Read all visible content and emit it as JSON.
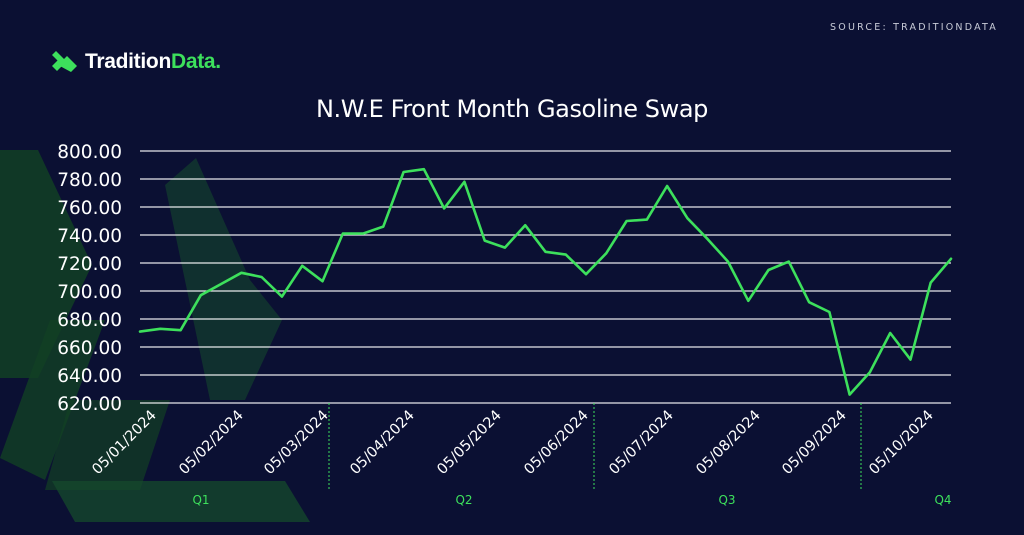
{
  "source": "SOURCE: TRADITIONDATA",
  "logo": {
    "name": "Tradition",
    "accent": "Data."
  },
  "colors": {
    "background": "#0b1033",
    "line": "#3de05c",
    "grid": "#ffffff",
    "quarter_label": "#3de05c"
  },
  "chart_data": {
    "type": "line",
    "title": "N.W.E Front Month Gasoline Swap",
    "xlabel": "",
    "ylabel": "",
    "ylim": [
      620,
      800
    ],
    "yticks": [
      "800.00",
      "780.00",
      "760.00",
      "740.00",
      "720.00",
      "700.00",
      "680.00",
      "660.00",
      "640.00",
      "620.00"
    ],
    "grid": "horizontal",
    "x_tick_labels": [
      "05/01/2024",
      "05/02/2024",
      "05/03/2024",
      "05/04/2024",
      "05/05/2024",
      "05/06/2024",
      "05/07/2024",
      "05/08/2024",
      "05/09/2024",
      "05/10/2024"
    ],
    "quarters": [
      "Q1",
      "Q2",
      "Q3",
      "Q4"
    ],
    "series": [
      {
        "values": [
          671,
          673,
          672,
          697,
          705,
          713,
          710,
          696,
          718,
          707,
          741,
          741,
          746,
          785,
          787,
          759,
          778,
          736,
          731,
          747,
          728,
          726,
          712,
          727,
          750,
          751,
          775,
          752,
          737,
          721,
          693,
          715,
          721,
          692,
          685,
          626,
          642,
          670,
          651,
          706,
          723
        ]
      }
    ]
  }
}
